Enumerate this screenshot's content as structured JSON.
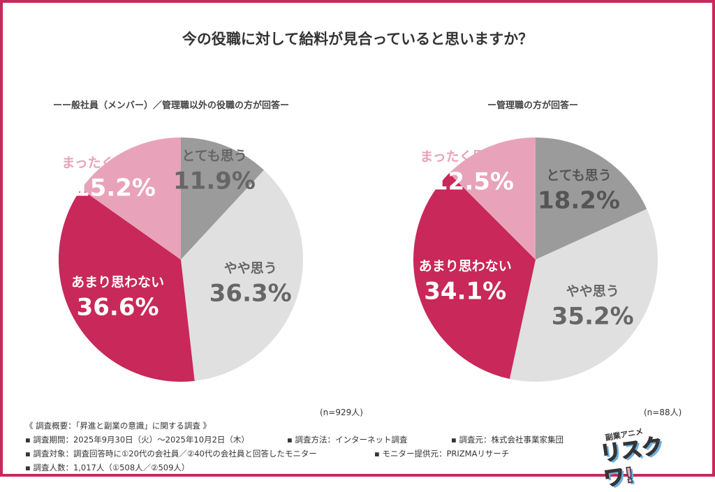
{
  "title": "今の役職に対して給料が見合っていると思いますか？",
  "colors": {
    "border": "#c8285a",
    "totemo": "#9b9b9b",
    "yaya": "#e0e0e0",
    "amari": "#c8285a",
    "mattaku": "#e8a3ba"
  },
  "chart_data": [
    {
      "type": "pie",
      "subtitle": "ーー般社員（メンバー）／管理職以外の役職の方が回答ー",
      "n": "(n=929人)",
      "categories": [
        "とても思う",
        "やや思う",
        "あまり思わない",
        "まったく思わない"
      ],
      "values": [
        11.9,
        36.3,
        36.6,
        15.2
      ],
      "labels": [
        "11.9%",
        "36.3%",
        "36.6%",
        "15.2%"
      ]
    },
    {
      "type": "pie",
      "subtitle": "ー管理職の方が回答ー",
      "n": "(n=88人)",
      "categories": [
        "とても思う",
        "やや思う",
        "あまり思わない",
        "まったく思わない"
      ],
      "values": [
        18.2,
        35.2,
        34.1,
        12.5
      ],
      "labels": [
        "18.2%",
        "35.2%",
        "34.1%",
        "12.5%"
      ]
    }
  ],
  "notes": {
    "heading": "《 調査概要：「昇進と副業の意識」に関する調査 》",
    "period": "▪ 調査期間：2025年9月30日（火）～2025年10月2日（木）",
    "method": "▪ 調査方法：インターネット調査",
    "org": "▪ 調査元：株式会社事業家集団",
    "target": "▪ 調査対象：調査回答時に①20代の会社員／②40代の会社員と回答したモニター",
    "provider": "▪ モニター提供元：PRIZMAリサーチ",
    "count": "▪ 調査人数：1,017人（①508人／②509人）"
  },
  "logo": {
    "top": "副業アニメ",
    "main": "リスクワ!"
  }
}
